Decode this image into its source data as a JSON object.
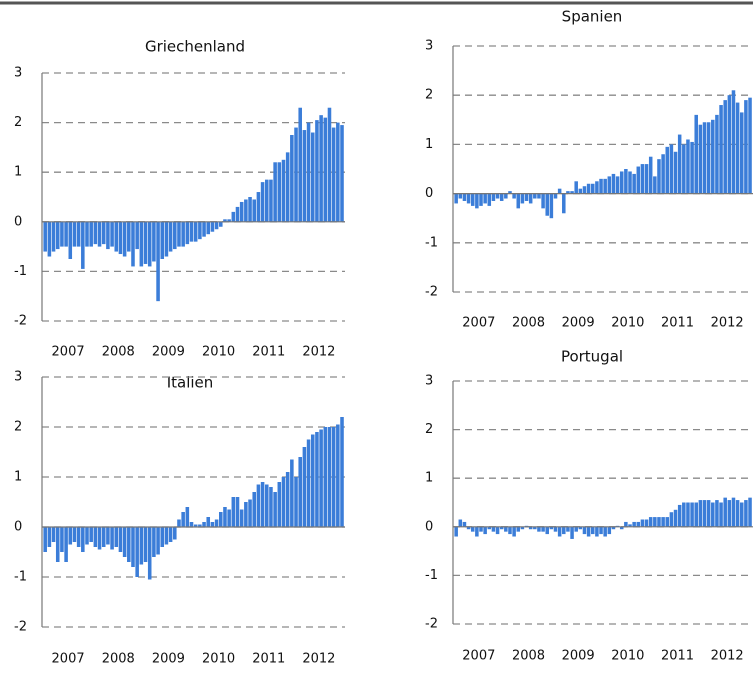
{
  "chart_data": [
    {
      "type": "bar",
      "title": "Griechenland",
      "color": "#3b7dd8",
      "grid": true,
      "categories": [
        null,
        null,
        null,
        null,
        null,
        null,
        "2007",
        null,
        null,
        null,
        null,
        null,
        null,
        null,
        null,
        null,
        null,
        null,
        "2008",
        null,
        null,
        null,
        null,
        null,
        null,
        null,
        null,
        null,
        null,
        null,
        "2009",
        null,
        null,
        null,
        null,
        null,
        null,
        null,
        null,
        null,
        null,
        null,
        "2010",
        null,
        null,
        null,
        null,
        null,
        null,
        null,
        null,
        null,
        null,
        null,
        "2011",
        null,
        null,
        null,
        null,
        null,
        null,
        null,
        null,
        null,
        null,
        null,
        "2012",
        null,
        null,
        null,
        null,
        null
      ],
      "values": [
        -0.6,
        -0.7,
        -0.6,
        -0.55,
        -0.5,
        -0.5,
        -0.75,
        -0.5,
        -0.5,
        -0.95,
        -0.5,
        -0.5,
        -0.45,
        -0.5,
        -0.45,
        -0.55,
        -0.5,
        -0.6,
        -0.65,
        -0.7,
        -0.6,
        -0.9,
        -0.55,
        -0.9,
        -0.85,
        -0.9,
        -0.8,
        -1.6,
        -0.75,
        -0.7,
        -0.6,
        -0.55,
        -0.5,
        -0.5,
        -0.45,
        -0.4,
        -0.4,
        -0.35,
        -0.3,
        -0.25,
        -0.2,
        -0.15,
        -0.1,
        0.05,
        0.05,
        0.2,
        0.3,
        0.4,
        0.45,
        0.5,
        0.45,
        0.6,
        0.8,
        0.85,
        0.85,
        1.2,
        1.2,
        1.25,
        1.4,
        1.75,
        1.9,
        2.3,
        1.85,
        2.0,
        1.8,
        2.05,
        2.15,
        2.1,
        2.3,
        1.9,
        2.0,
        1.95
      ],
      "ylim": [
        -2,
        3
      ],
      "yticks": [
        -2,
        -1,
        0,
        1,
        2,
        3
      ]
    },
    {
      "type": "bar",
      "title": "Spanien",
      "color": "#3b7dd8",
      "grid": true,
      "categories": [
        null,
        null,
        null,
        null,
        null,
        null,
        "2007",
        null,
        null,
        null,
        null,
        null,
        null,
        null,
        null,
        null,
        null,
        null,
        "2008",
        null,
        null,
        null,
        null,
        null,
        null,
        null,
        null,
        null,
        null,
        null,
        "2009",
        null,
        null,
        null,
        null,
        null,
        null,
        null,
        null,
        null,
        null,
        null,
        "2010",
        null,
        null,
        null,
        null,
        null,
        null,
        null,
        null,
        null,
        null,
        null,
        "2011",
        null,
        null,
        null,
        null,
        null,
        null,
        null,
        null,
        null,
        null,
        null,
        "2012",
        null,
        null,
        null,
        null,
        null
      ],
      "values": [
        -0.2,
        -0.1,
        -0.15,
        -0.2,
        -0.25,
        -0.3,
        -0.25,
        -0.2,
        -0.25,
        -0.15,
        -0.1,
        -0.15,
        -0.1,
        0.05,
        -0.1,
        -0.3,
        -0.2,
        -0.15,
        -0.2,
        -0.1,
        -0.1,
        -0.3,
        -0.45,
        -0.5,
        -0.1,
        0.1,
        -0.4,
        0.05,
        0.05,
        0.25,
        0.1,
        0.15,
        0.2,
        0.2,
        0.25,
        0.3,
        0.3,
        0.35,
        0.4,
        0.35,
        0.45,
        0.5,
        0.45,
        0.4,
        0.55,
        0.6,
        0.6,
        0.75,
        0.35,
        0.7,
        0.8,
        0.95,
        1.0,
        0.85,
        1.2,
        1.0,
        1.1,
        1.05,
        1.6,
        1.4,
        1.45,
        1.45,
        1.5,
        1.6,
        1.8,
        1.9,
        2.0,
        2.1,
        1.85,
        1.65,
        1.9,
        1.95
      ],
      "ylim": [
        -2,
        3
      ],
      "yticks": [
        -2,
        -1,
        0,
        1,
        2,
        3
      ]
    },
    {
      "type": "bar",
      "title": "Italien",
      "color": "#3b7dd8",
      "grid": true,
      "categories": [
        null,
        null,
        null,
        null,
        null,
        null,
        "2007",
        null,
        null,
        null,
        null,
        null,
        null,
        null,
        null,
        null,
        null,
        null,
        "2008",
        null,
        null,
        null,
        null,
        null,
        null,
        null,
        null,
        null,
        null,
        null,
        "2009",
        null,
        null,
        null,
        null,
        null,
        null,
        null,
        null,
        null,
        null,
        null,
        "2010",
        null,
        null,
        null,
        null,
        null,
        null,
        null,
        null,
        null,
        null,
        null,
        "2011",
        null,
        null,
        null,
        null,
        null,
        null,
        null,
        null,
        null,
        null,
        null,
        "2012",
        null,
        null,
        null,
        null,
        null
      ],
      "values": [
        -0.5,
        -0.4,
        -0.3,
        -0.7,
        -0.5,
        -0.7,
        -0.35,
        -0.3,
        -0.4,
        -0.5,
        -0.35,
        -0.3,
        -0.4,
        -0.45,
        -0.4,
        -0.35,
        -0.45,
        -0.4,
        -0.5,
        -0.6,
        -0.7,
        -0.8,
        -1.0,
        -0.75,
        -0.7,
        -1.05,
        -0.6,
        -0.55,
        -0.4,
        -0.35,
        -0.3,
        -0.25,
        0.15,
        0.3,
        0.4,
        0.1,
        0.05,
        0.05,
        0.1,
        0.2,
        0.1,
        0.15,
        0.3,
        0.4,
        0.35,
        0.6,
        0.6,
        0.35,
        0.5,
        0.55,
        0.7,
        0.85,
        0.9,
        0.85,
        0.8,
        0.7,
        0.9,
        1.0,
        1.1,
        1.35,
        1.0,
        1.4,
        1.6,
        1.75,
        1.85,
        1.9,
        1.95,
        2.0,
        2.0,
        2.0,
        2.05,
        2.2
      ],
      "ylim": [
        -2,
        3
      ],
      "yticks": [
        -2,
        -1,
        0,
        1,
        2,
        3
      ]
    },
    {
      "type": "bar",
      "title": "Portugal",
      "color": "#3b7dd8",
      "grid": true,
      "categories": [
        null,
        null,
        null,
        null,
        null,
        null,
        "2007",
        null,
        null,
        null,
        null,
        null,
        null,
        null,
        null,
        null,
        null,
        null,
        "2008",
        null,
        null,
        null,
        null,
        null,
        null,
        null,
        null,
        null,
        null,
        null,
        "2009",
        null,
        null,
        null,
        null,
        null,
        null,
        null,
        null,
        null,
        null,
        null,
        "2010",
        null,
        null,
        null,
        null,
        null,
        null,
        null,
        null,
        null,
        null,
        null,
        "2011",
        null,
        null,
        null,
        null,
        null,
        null,
        null,
        null,
        null,
        null,
        null,
        "2012",
        null,
        null,
        null,
        null,
        null
      ],
      "values": [
        -0.2,
        0.15,
        0.1,
        -0.05,
        -0.1,
        -0.2,
        -0.1,
        -0.15,
        -0.05,
        -0.1,
        -0.15,
        -0.05,
        -0.1,
        -0.15,
        -0.2,
        -0.1,
        -0.05,
        0.02,
        -0.05,
        -0.05,
        -0.1,
        -0.1,
        -0.15,
        -0.05,
        -0.1,
        -0.2,
        -0.15,
        -0.1,
        -0.25,
        -0.1,
        -0.05,
        -0.15,
        -0.2,
        -0.15,
        -0.2,
        -0.15,
        -0.2,
        -0.15,
        -0.05,
        0.02,
        -0.05,
        0.1,
        0.05,
        0.1,
        0.1,
        0.15,
        0.15,
        0.2,
        0.2,
        0.2,
        0.2,
        0.2,
        0.3,
        0.35,
        0.45,
        0.5,
        0.5,
        0.5,
        0.5,
        0.55,
        0.55,
        0.55,
        0.5,
        0.55,
        0.5,
        0.6,
        0.55,
        0.6,
        0.55,
        0.5,
        0.55,
        0.6
      ],
      "ylim": [
        -2,
        3
      ],
      "yticks": [
        -2,
        -1,
        0,
        1,
        2,
        3
      ]
    }
  ]
}
